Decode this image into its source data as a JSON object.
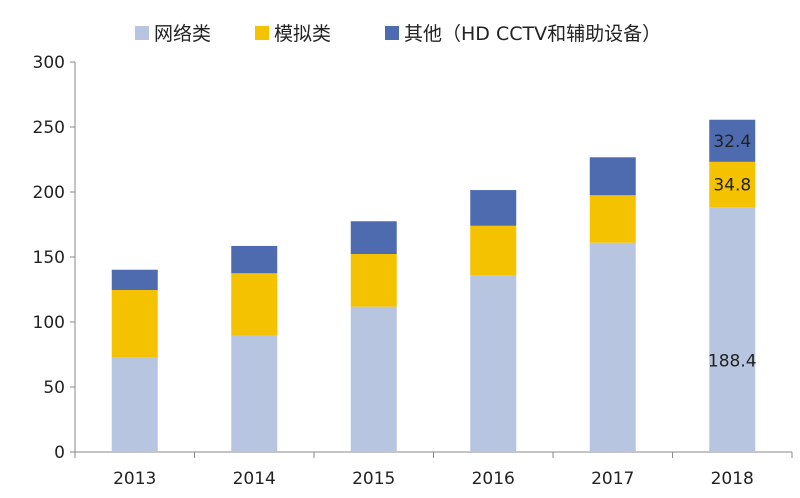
{
  "chart_data": {
    "type": "bar",
    "stacked": true,
    "categories": [
      "2013",
      "2014",
      "2015",
      "2016",
      "2017",
      "2018"
    ],
    "series": [
      {
        "name": "网络类",
        "color": "#b8c5e0",
        "values": [
          72.5,
          90,
          111.8,
          135.6,
          161,
          188.4
        ]
      },
      {
        "name": "模拟类",
        "color": "#f5c200",
        "values": [
          52.1,
          47.5,
          40.5,
          38.4,
          36.5,
          34.8
        ]
      },
      {
        "name": "其他（HD CCTV和辅助设备）",
        "color": "#4f6bb0",
        "values": [
          15.6,
          21,
          25.2,
          27.5,
          29.2,
          32.4
        ]
      }
    ],
    "data_labels": [
      {
        "category": "2018",
        "series": 0,
        "text": "188.4"
      },
      {
        "category": "2018",
        "series": 1,
        "text": "34.8"
      },
      {
        "category": "2018",
        "series": 2,
        "text": "32.4"
      }
    ],
    "yticks": [
      "0",
      "50",
      "100",
      "150",
      "200",
      "250",
      "300"
    ],
    "ylim": [
      0,
      300
    ],
    "title": "",
    "xlabel": "",
    "ylabel": "",
    "grid": false,
    "legend_position": "top"
  }
}
